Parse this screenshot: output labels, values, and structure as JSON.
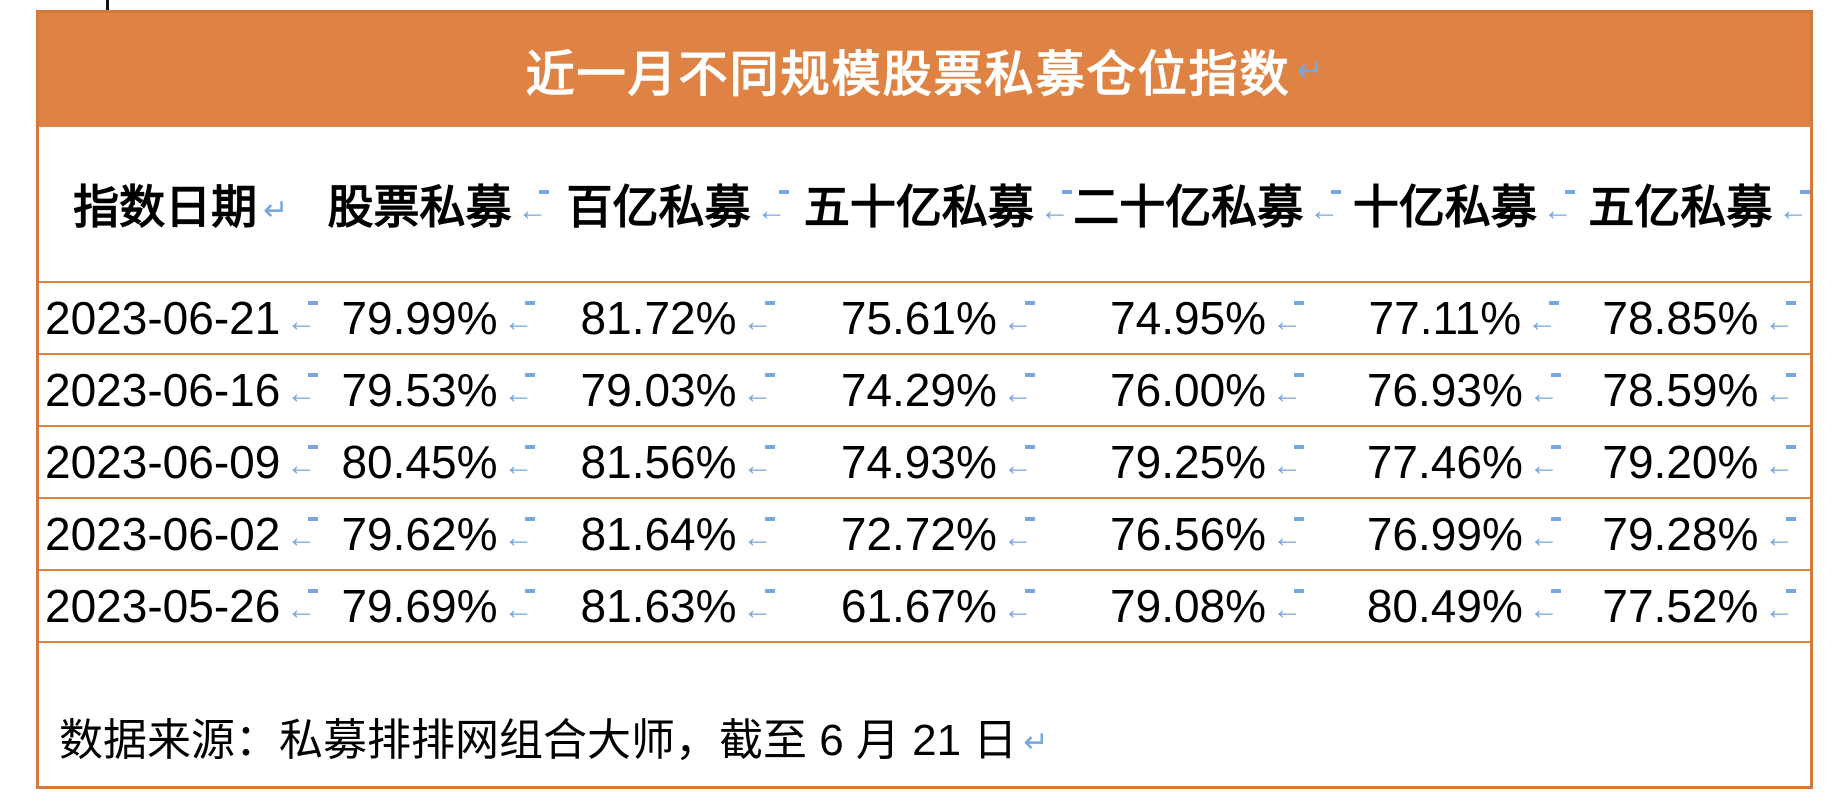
{
  "colors": {
    "banner_orange": "#DF8345",
    "border_orange": "#D2793B",
    "row_line_orange": "#D98747",
    "mark_blue": "#74A7E3",
    "title_text": "#FFFFFF",
    "body_text": "#000000"
  },
  "marks": {
    "hard": "↵",
    "soft": "←"
  },
  "table": {
    "title": {
      "text": "近一月不同规模股票私募仓位指数",
      "mark": "hard"
    },
    "columns": [
      {
        "label": "指数日期",
        "mark": "hard"
      },
      {
        "label": "股票私募",
        "mark": "soft"
      },
      {
        "label": "百亿私募",
        "mark": "soft"
      },
      {
        "label": "五十亿私募",
        "mark": "soft"
      },
      {
        "label": "二十亿私募",
        "mark": "soft"
      },
      {
        "label": "十亿私募",
        "mark": "soft"
      },
      {
        "label": "五亿私募",
        "mark": "soft"
      }
    ],
    "cell_mark": "soft",
    "rows": [
      [
        "2023-06-21",
        "79.99%",
        "81.72%",
        "75.61%",
        "74.95%",
        "77.11%",
        "78.85%"
      ],
      [
        "2023-06-16",
        "79.53%",
        "79.03%",
        "74.29%",
        "76.00%",
        "76.93%",
        "78.59%"
      ],
      [
        "2023-06-09",
        "80.45%",
        "81.56%",
        "74.93%",
        "79.25%",
        "77.46%",
        "79.20%"
      ],
      [
        "2023-06-02",
        "79.62%",
        "81.64%",
        "72.72%",
        "76.56%",
        "76.99%",
        "79.28%"
      ],
      [
        "2023-05-26",
        "79.69%",
        "81.63%",
        "61.67%",
        "79.08%",
        "80.49%",
        "77.52%"
      ]
    ],
    "footer": {
      "text": "数据来源：私募排排网组合大师，截至 6 月 21 日",
      "mark": "hard"
    }
  }
}
